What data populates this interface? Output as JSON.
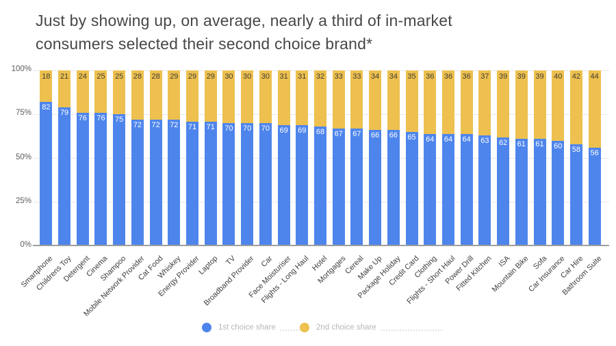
{
  "title": {
    "lines": [
      "Just by showing up, on average, nearly a third of in-market",
      "consumers selected their second choice brand*"
    ]
  },
  "chart_data": {
    "type": "bar",
    "stacked": true,
    "title": "Just by showing up, on average, nearly a third of in-market consumers selected their second choice brand*",
    "categories": [
      "Smartphone",
      "Childrens Toy",
      "Detergent",
      "Cinema",
      "Shampoo",
      "Mobile Network Provider",
      "Cat Food",
      "Whiskey",
      "Energy Provider",
      "Laptop",
      "TV",
      "Broadband Provider",
      "Car",
      "Face Moisturiser",
      "Flights - Long Haul",
      "Hotel",
      "Mortgages",
      "Cereal",
      "Make Up",
      "Package Holiday",
      "Credit Card",
      "Clothing",
      "Flights - Short Haul",
      "Power Drill",
      "Fitted Kitchen",
      "ISA",
      "Mountain Bike",
      "Sofa",
      "Car Insurance",
      "Car Hire",
      "Bathroom Suite"
    ],
    "series": [
      {
        "name": "1st choice share",
        "color": "#4e85ec",
        "label_color": "#ffffff",
        "values": [
          82,
          79,
          76,
          76,
          75,
          72,
          72,
          72,
          71,
          71,
          70,
          70,
          70,
          69,
          69,
          68,
          67,
          67,
          66,
          66,
          65,
          64,
          64,
          64,
          63,
          62,
          61,
          61,
          60,
          58,
          56
        ]
      },
      {
        "name": "2nd choice share",
        "color": "#edc04f",
        "label_color": "#3f3c33",
        "values": [
          18,
          21,
          24,
          25,
          25,
          28,
          28,
          29,
          29,
          29,
          30,
          30,
          30,
          31,
          31,
          32,
          33,
          33,
          34,
          34,
          35,
          36,
          36,
          36,
          37,
          39,
          39,
          39,
          40,
          42,
          44
        ]
      }
    ],
    "xlabel": "",
    "ylabel": "",
    "ylim": [
      0,
      100
    ],
    "yticks": [
      0,
      25,
      50,
      75,
      100
    ],
    "ytick_labels": [
      "0%",
      "25%",
      "50%",
      "75%",
      "100%"
    ],
    "grid": true,
    "legend_position": "bottom"
  },
  "legend": {
    "items": [
      {
        "label": "1st choice share",
        "color": "#4e85ec"
      },
      {
        "label": "2nd choice share",
        "color": "#edc04f"
      }
    ]
  },
  "colors": {
    "background": "#ffffff",
    "title_text": "#474747",
    "first_choice": "#4e85ec",
    "second_choice": "#edc04f",
    "gridline": "#e7e7e7",
    "axis_line": "#9e9e9e",
    "ytick_text": "#5c5c5c",
    "category_text": "#3d3d3d",
    "legend_text": "#b7b7b7"
  }
}
